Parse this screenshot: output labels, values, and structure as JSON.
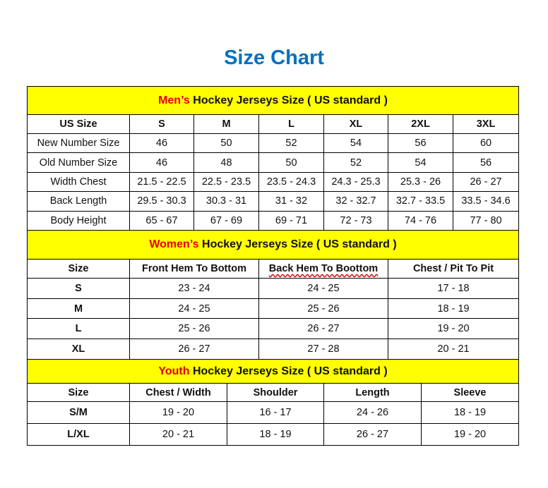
{
  "title": "Size Chart",
  "highlight_color": "#FFFF00",
  "title_color": "#0070C0",
  "accent_red": "#E00000",
  "men": {
    "title_prefix": "Men’s",
    "title_rest": " Hockey Jerseys Size ( US standard )",
    "headers": [
      "US Size",
      "S",
      "M",
      "L",
      "XL",
      "2XL",
      "3XL"
    ],
    "rows": [
      [
        "New Number Size",
        "46",
        "50",
        "52",
        "54",
        "56",
        "60"
      ],
      [
        "Old Number Size",
        "46",
        "48",
        "50",
        "52",
        "54",
        "56"
      ],
      [
        "Width Chest",
        "21.5 - 22.5",
        "22.5 - 23.5",
        "23.5 - 24.3",
        "24.3 - 25.3",
        "25.3 - 26",
        "26 - 27"
      ],
      [
        "Back Length",
        "29.5 - 30.3",
        "30.3 - 31",
        "31 - 32",
        "32 - 32.7",
        "32.7 - 33.5",
        "33.5 - 34.6"
      ],
      [
        "Body Height",
        "65 - 67",
        "67 - 69",
        "69 - 71",
        "72 - 73",
        "74 - 76",
        "77 - 80"
      ]
    ]
  },
  "women": {
    "title_prefix": "Women’s",
    "title_rest": " Hockey Jerseys Size ( US standard )",
    "headers": [
      "Size",
      "Front Hem To Bottom",
      "Back Hem To Boottom",
      "Chest / Pit To Pit"
    ],
    "rows": [
      [
        "S",
        "23 - 24",
        "24 - 25",
        "17 - 18"
      ],
      [
        "M",
        "24 - 25",
        "25 - 26",
        "18 - 19"
      ],
      [
        "L",
        "25 - 26",
        "26 - 27",
        "19 - 20"
      ],
      [
        "XL",
        "26 - 27",
        "27 - 28",
        "20 - 21"
      ]
    ]
  },
  "youth": {
    "title_prefix": "Youth",
    "title_rest": " Hockey Jerseys Size ( US standard )",
    "headers": [
      "Size",
      "Chest / Width",
      "Shoulder",
      "Length",
      "Sleeve"
    ],
    "rows": [
      [
        "S/M",
        "19 - 20",
        "16 - 17",
        "24 - 26",
        "18 - 19"
      ],
      [
        "L/XL",
        "20 - 21",
        "18 - 19",
        "26 - 27",
        "19 - 20"
      ]
    ]
  }
}
